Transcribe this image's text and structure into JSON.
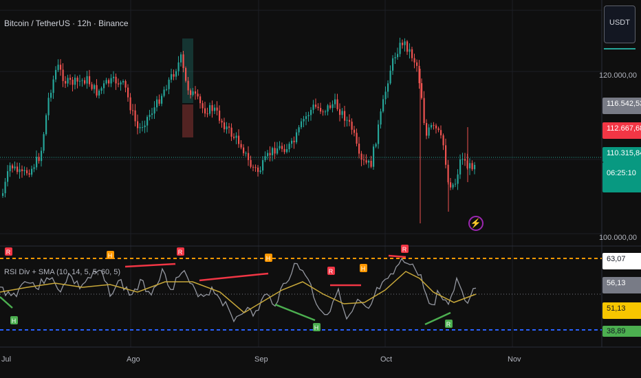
{
  "header": {
    "symbol_title": "Bitcoin / TetherUS · 12h · Binance",
    "currency_button": "USDT"
  },
  "indicator": {
    "title": "RSI Div + SMA (10, 14, 5, 5, 60, 5)"
  },
  "price_axis": {
    "ticks": [
      "120.000,00",
      "100.000,00"
    ]
  },
  "price_tags": [
    {
      "value": "116.542,53",
      "bg": "#787b86",
      "fg": "#ffffff"
    },
    {
      "value": "112.667,68",
      "bg": "#f23645",
      "fg": "#ffffff"
    },
    {
      "value": "110.315,84",
      "bg": "#089981",
      "fg": "#ffffff"
    },
    {
      "value": "06:25:10",
      "bg": "#089981",
      "fg": "#ffffff"
    }
  ],
  "rsi_tags": [
    {
      "value": "63,07",
      "bg": "#ffffff",
      "fg": "#131722"
    },
    {
      "value": "56,13",
      "bg": "#787b86",
      "fg": "#ffffff"
    },
    {
      "value": "51,13",
      "bg": "#f7c600",
      "fg": "#131722"
    },
    {
      "value": "38,89",
      "bg": "#4caf50",
      "fg": "#131722"
    }
  ],
  "time_axis": [
    "Jul",
    "Ago",
    "Sep",
    "Oct",
    "Nov"
  ],
  "markers": [
    {
      "kind": "R",
      "color": "#f23645"
    },
    {
      "kind": "H",
      "color": "#ff9800"
    },
    {
      "kind": "R",
      "color": "#f23645"
    },
    {
      "kind": "H",
      "color": "#ff9800"
    },
    {
      "kind": "R",
      "color": "#f23645"
    },
    {
      "kind": "H",
      "color": "#ff9800"
    },
    {
      "kind": "R",
      "color": "#f23645"
    },
    {
      "kind": "H",
      "color": "#4caf50"
    },
    {
      "kind": "H",
      "color": "#4caf50"
    },
    {
      "kind": "R",
      "color": "#4caf50"
    }
  ],
  "colors": {
    "up": "#26a69a",
    "down": "#ef5350",
    "rsi": "#9598a1",
    "sma": "#c9a93a",
    "overbought": "#ff9800",
    "oversold": "#2962ff"
  },
  "chart_data": {
    "type": "candlestick",
    "price_axis_ticks": [
      120000,
      100000
    ],
    "last_price": 110315.84,
    "rsi_levels": {
      "overbought": 63.07,
      "oversold": 38.89
    }
  }
}
